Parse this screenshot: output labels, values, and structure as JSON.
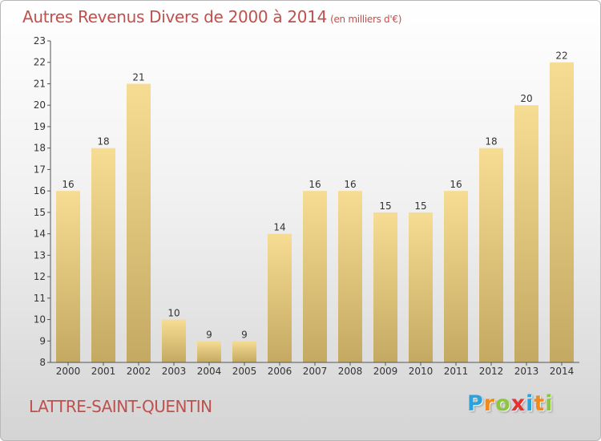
{
  "header": {
    "title": "Autres Revenus Divers de 2000 à 2014",
    "subtitle": "(en milliers d'€)"
  },
  "footer": {
    "commune": "LATTRE-SAINT-QUENTIN",
    "logo_text": "Proxiti",
    "logo_letters": [
      {
        "ch": "P",
        "color": "#2aa3dc"
      },
      {
        "ch": "r",
        "color": "#f08a1c"
      },
      {
        "ch": "o",
        "color": "#8cc63f"
      },
      {
        "ch": "x",
        "color": "#e8312f"
      },
      {
        "ch": "i",
        "color": "#2aa3dc"
      },
      {
        "ch": "t",
        "color": "#f08a1c"
      },
      {
        "ch": "i",
        "color": "#8cc63f"
      }
    ]
  },
  "chart_data": {
    "type": "bar",
    "title": "Autres Revenus Divers de 2000 à 2014",
    "subtitle": "(en milliers d'€)",
    "categories": [
      "2000",
      "2001",
      "2002",
      "2003",
      "2004",
      "2005",
      "2006",
      "2007",
      "2008",
      "2009",
      "2010",
      "2011",
      "2012",
      "2013",
      "2014"
    ],
    "values": [
      16,
      18,
      21,
      10,
      9,
      9,
      14,
      16,
      16,
      15,
      15,
      16,
      18,
      20,
      22
    ],
    "ylim": [
      8,
      23
    ],
    "yticks": [
      8,
      9,
      10,
      11,
      12,
      13,
      14,
      15,
      16,
      17,
      18,
      19,
      20,
      21,
      22,
      23
    ],
    "grid": false,
    "legend": "none",
    "colors": {
      "bar_top": "#f7dc93",
      "bar_bottom": "#c4a962",
      "title": "#c0504d",
      "axis": "#333333"
    }
  }
}
